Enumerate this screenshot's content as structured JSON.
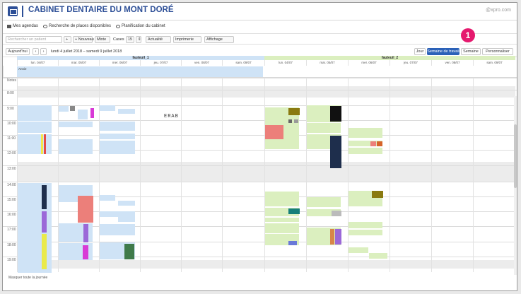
{
  "header": {
    "title": "CABINET DENTAIRE DU MONT DORÉ",
    "user_email": "@xpro.com"
  },
  "nav": {
    "agendas": "Mes agendas",
    "search_slots": "Recherche de places disponibles",
    "plan": "Planification du cabinet"
  },
  "toolbar": {
    "search_placeholder": "Rechercher un patient",
    "new_label": "+ Nouveau",
    "stats_label": "Mixte",
    "boxes_label": "Cases",
    "boxes_value": "15",
    "actuality": "Actualité",
    "reasons": "Imprimerie",
    "display": "Affichage"
  },
  "row2": {
    "today": "Aujourd'hui",
    "prev": "‹",
    "next": "›",
    "range": "lundi 4 juillet 2018 – samedi 9 juillet 2018",
    "views": [
      "Jour",
      "Semaine de travail",
      "Semaine",
      "Personnaliser"
    ]
  },
  "calendar": {
    "chairs": [
      "fauteuil_1",
      "fauteuil_2"
    ],
    "days": [
      "lun. 04/07",
      "mar. 05/07",
      "mer. 06/07",
      "jeu. 07/07",
      "ven. 08/07",
      "sam. 09/07",
      "lun. 04/07",
      "mar. 05/07",
      "mer. 06/07",
      "jeu. 07/07",
      "ven. 08/07",
      "sam. 09/07"
    ],
    "hours": [
      "Notes",
      "8:00",
      "9:00",
      "10:00",
      "11:00",
      "12:00",
      "13:00",
      "14:00",
      "15:00",
      "16:00",
      "17:00",
      "18:00",
      "19:00"
    ],
    "allday_note": "Annie",
    "freehand": "ERAB"
  },
  "footer": {
    "show_all": "Masquer toute la journée"
  },
  "accent_color": "#2b61b8",
  "badge_number": "1"
}
